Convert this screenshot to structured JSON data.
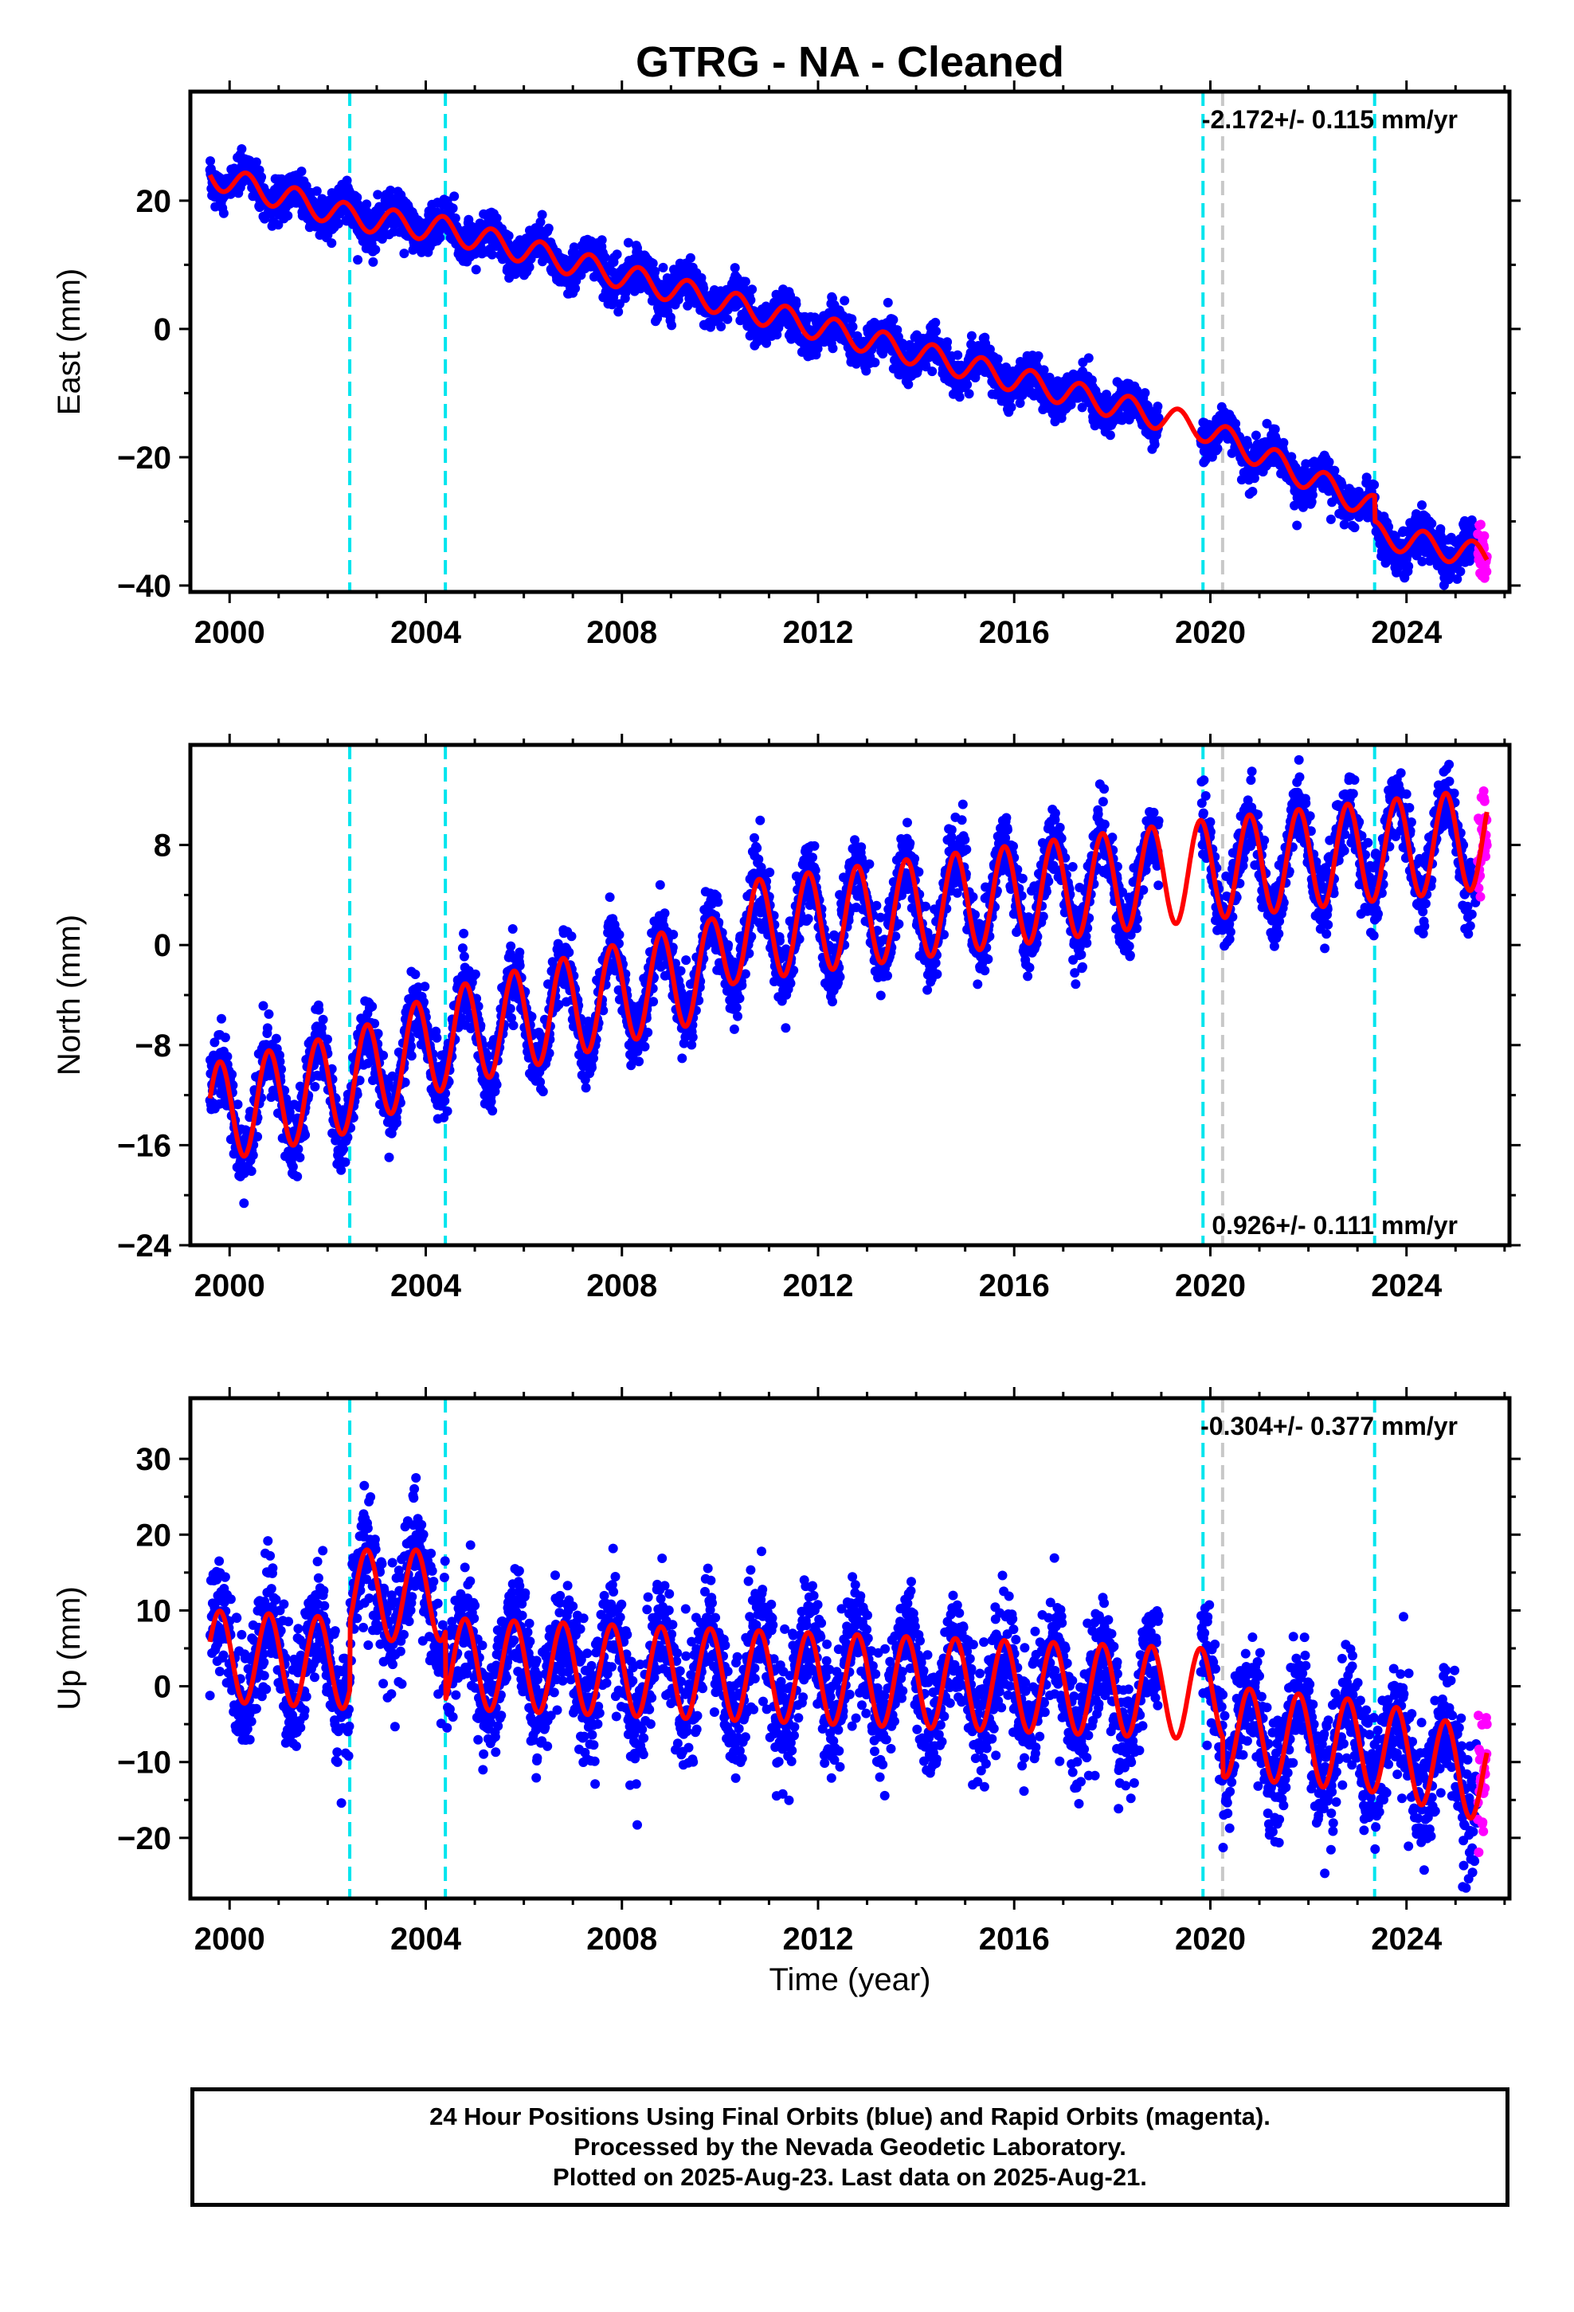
{
  "title": "GTRG  - NA - Cleaned",
  "xlabel": "Time (year)",
  "footer": {
    "line1": "24 Hour Positions Using Final Orbits (blue) and Rapid Orbits (magenta).",
    "line2": "Processed by the Nevada Geodetic Laboratory.",
    "line3": "Plotted on 2025-Aug-23. Last data on 2025-Aug-21."
  },
  "colors": {
    "final_orbits": "#0000ff",
    "rapid_orbits": "#ff00ff",
    "model": "#ff0000",
    "equipment_change": "#00e5ee",
    "other_event": "#c8c8c8"
  },
  "chart_data": [
    {
      "type": "scatter",
      "component": "east",
      "ylabel": "East (mm)",
      "xlim": [
        1999.2,
        2026.1
      ],
      "ylim": [
        -41,
        37
      ],
      "xticks": [
        2000,
        2004,
        2008,
        2012,
        2016,
        2020,
        2024
      ],
      "yticks": [
        -40,
        -20,
        0,
        20
      ],
      "grid": false,
      "rate_label": "-2.172+/- 0.115 mm/yr",
      "rate_label_position": "top-right",
      "data_start": 1999.6,
      "data_end": 2025.64,
      "rapid_orbit_start": 2025.45,
      "gap": [
        2018.95,
        2019.8
      ],
      "vertical_lines": [
        {
          "x": 2002.45,
          "kind": "equipment_change"
        },
        {
          "x": 2004.4,
          "kind": "equipment_change"
        },
        {
          "x": 2019.85,
          "kind": "equipment_change"
        },
        {
          "x": 2020.25,
          "kind": "other_event"
        },
        {
          "x": 2023.35,
          "kind": "equipment_change"
        }
      ],
      "model": {
        "knots": [
          [
            1999.6,
            24
          ],
          [
            2002.45,
            17.5
          ],
          [
            2004.4,
            15.5
          ],
          [
            2019.85,
            -15.5
          ],
          [
            2023.35,
            -28
          ],
          [
            2023.36,
            -32
          ],
          [
            2025.64,
            -35.5
          ]
        ],
        "annual_amplitude": 2.0,
        "annual_phase": 0.1
      },
      "noise_sd": 1.6
    },
    {
      "type": "scatter",
      "component": "north",
      "ylabel": "North (mm)",
      "xlim": [
        1999.2,
        2026.1
      ],
      "ylim": [
        -24,
        16
      ],
      "xticks": [
        2000,
        2004,
        2008,
        2012,
        2016,
        2020,
        2024
      ],
      "yticks": [
        -24,
        -16,
        -8,
        0,
        8
      ],
      "grid": false,
      "rate_label": "0.926+/- 0.111 mm/yr",
      "rate_label_position": "bottom-right",
      "data_start": 1999.6,
      "data_end": 2025.64,
      "rapid_orbit_start": 2025.45,
      "gap": [
        2018.95,
        2019.8
      ],
      "vertical_lines": [
        {
          "x": 2002.45,
          "kind": "equipment_change"
        },
        {
          "x": 2004.4,
          "kind": "equipment_change"
        },
        {
          "x": 2019.85,
          "kind": "equipment_change"
        },
        {
          "x": 2020.25,
          "kind": "other_event"
        },
        {
          "x": 2023.35,
          "kind": "equipment_change"
        }
      ],
      "model": {
        "knots": [
          [
            1999.6,
            -13.5
          ],
          [
            2002.45,
            -11
          ],
          [
            2004.4,
            -7.5
          ],
          [
            2009.8,
            -2
          ],
          [
            2010.3,
            1
          ],
          [
            2019.85,
            6
          ],
          [
            2025.64,
            8.5
          ]
        ],
        "annual_amplitude": 4.0,
        "annual_phase": 0.55
      },
      "noise_sd": 1.4
    },
    {
      "type": "scatter",
      "component": "up",
      "ylabel": "Up (mm)",
      "xlim": [
        1999.2,
        2026.1
      ],
      "ylim": [
        -28,
        38
      ],
      "xticks": [
        2000,
        2004,
        2008,
        2012,
        2016,
        2020,
        2024
      ],
      "yticks": [
        -20,
        -10,
        0,
        10,
        20,
        30
      ],
      "grid": false,
      "rate_label": "-0.304+/- 0.377 mm/yr",
      "rate_label_position": "top-right",
      "data_start": 1999.6,
      "data_end": 2025.64,
      "rapid_orbit_start": 2025.45,
      "gap": [
        2018.95,
        2019.8
      ],
      "vertical_lines": [
        {
          "x": 2002.45,
          "kind": "equipment_change"
        },
        {
          "x": 2004.4,
          "kind": "equipment_change"
        },
        {
          "x": 2019.85,
          "kind": "equipment_change"
        },
        {
          "x": 2020.25,
          "kind": "other_event"
        },
        {
          "x": 2023.35,
          "kind": "equipment_change"
        }
      ],
      "model": {
        "knots": [
          [
            1999.6,
            4
          ],
          [
            2002.45,
            3
          ],
          [
            2002.46,
            12
          ],
          [
            2004.4,
            12
          ],
          [
            2004.41,
            3
          ],
          [
            2019.85,
            -1
          ],
          [
            2020.25,
            -1
          ],
          [
            2020.26,
            -6
          ],
          [
            2023.35,
            -8
          ],
          [
            2025.64,
            -12
          ]
        ],
        "annual_amplitude": 6.0,
        "annual_phase": 0.55
      },
      "noise_sd": 4.0
    }
  ]
}
